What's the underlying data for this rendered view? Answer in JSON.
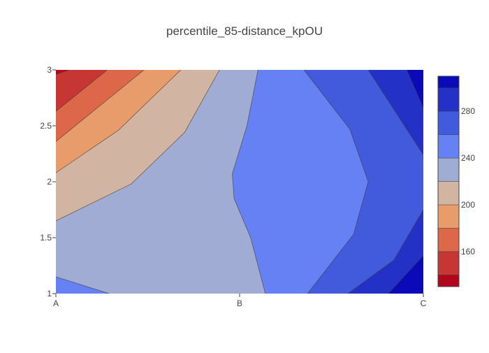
{
  "chart_data": {
    "type": "contour",
    "title": "percentile_85-distance_kpOU",
    "x_categories": [
      "A",
      "B",
      "C"
    ],
    "y_ticks": [
      1,
      1.5,
      2,
      2.5,
      3
    ],
    "y_tick_labels": [
      "1",
      "1.5",
      "2",
      "2.5",
      "3"
    ],
    "y_range": [
      1,
      3
    ],
    "z_range": [
      130,
      310
    ],
    "colorbar": {
      "ticks": [
        160,
        200,
        240,
        280
      ],
      "tick_labels": [
        "160",
        "200",
        "240",
        "280"
      ],
      "levels": [
        {
          "from": 130,
          "to": 140,
          "color": "#b2061c"
        },
        {
          "from": 140,
          "to": 160,
          "color": "#c63632"
        },
        {
          "from": 160,
          "to": 180,
          "color": "#dc6749"
        },
        {
          "from": 180,
          "to": 200,
          "color": "#e89b6b"
        },
        {
          "from": 200,
          "to": 220,
          "color": "#d1b4a1"
        },
        {
          "from": 220,
          "to": 240,
          "color": "#a0acd4"
        },
        {
          "from": 240,
          "to": 260,
          "color": "#6581f4"
        },
        {
          "from": 260,
          "to": 280,
          "color": "#425bdc"
        },
        {
          "from": 280,
          "to": 300,
          "color": "#2431c6"
        },
        {
          "from": 300,
          "to": 310,
          "color": "#0a0ab8"
        }
      ]
    },
    "contour_boundaries": [
      {
        "between": [
          "#b2061c",
          "#c63632"
        ],
        "points": [
          [
            "A",
            2.96
          ],
          [
            0.07,
            3.0
          ]
        ]
      },
      {
        "between": [
          "#c63632",
          "#dc6749"
        ],
        "points": [
          [
            "A",
            2.63
          ],
          [
            0.28,
            3.0
          ]
        ]
      },
      {
        "between": [
          "#dc6749",
          "#e89b6b"
        ],
        "points": [
          [
            "A",
            2.36
          ],
          [
            0.48,
            3.0
          ]
        ]
      },
      {
        "between": [
          "#e89b6b",
          "#d1b4a1"
        ],
        "points": [
          [
            "A",
            2.08
          ],
          [
            0.34,
            2.46
          ],
          [
            0.68,
            3.0
          ]
        ]
      },
      {
        "between": [
          "#d1b4a1",
          "#a0acd4"
        ],
        "points": [
          [
            "A",
            1.65
          ],
          [
            0.41,
            1.98
          ],
          [
            0.7,
            2.44
          ],
          [
            0.89,
            3.0
          ]
        ]
      },
      {
        "between": [
          "#a0acd4",
          "#6581f4"
        ],
        "points": [
          [
            "A",
            1.15
          ],
          [
            0.29,
            1.0
          ]
        ]
      },
      {
        "between": [
          "#a0acd4",
          "#6581f4"
        ],
        "points": [
          [
            1.1,
            3.0
          ],
          [
            1.04,
            2.5
          ],
          [
            0.96,
            2.07
          ],
          [
            0.97,
            1.85
          ],
          [
            1.06,
            1.5
          ],
          [
            1.14,
            1.0
          ]
        ]
      },
      {
        "between": [
          "#6581f4",
          "#425bdc"
        ],
        "points": [
          [
            1.35,
            3.0
          ],
          [
            1.6,
            2.47
          ],
          [
            1.7,
            2.0
          ],
          [
            1.62,
            1.53
          ],
          [
            1.37,
            1.0
          ]
        ]
      },
      {
        "between": [
          "#425bdc",
          "#2431c6"
        ],
        "points": [
          [
            1.7,
            3.0
          ],
          [
            2.0,
            2.24
          ],
          [
            "C",
            2.2
          ]
        ]
      },
      {
        "between": [
          "#425bdc",
          "#2431c6"
        ],
        "points": [
          [
            "C",
            1.75
          ],
          [
            1.84,
            1.3
          ],
          [
            1.59,
            1.0
          ]
        ]
      },
      {
        "between": [
          "#2431c6",
          "#0a0ab8"
        ],
        "points": [
          [
            1.91,
            3.0
          ],
          [
            "C",
            2.66
          ]
        ]
      },
      {
        "between": [
          "#2431c6",
          "#0a0ab8"
        ],
        "points": [
          [
            "C",
            1.34
          ],
          [
            1.81,
            1.0
          ]
        ]
      }
    ]
  }
}
